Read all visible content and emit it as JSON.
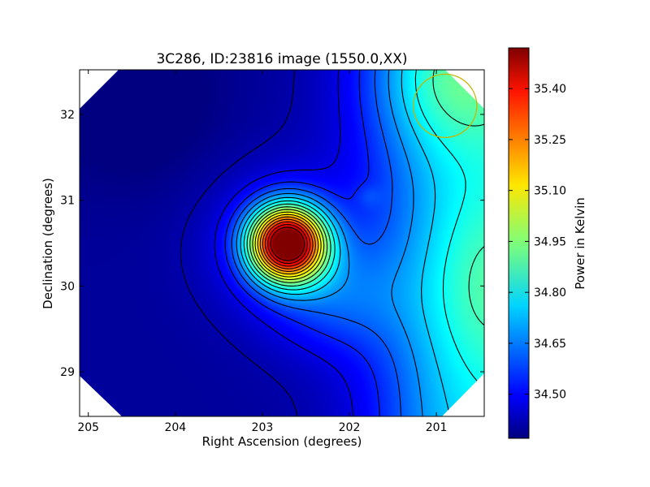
{
  "chart_data": {
    "type": "heatmap",
    "title": "3C286, ID:23816 image (1550.0,XX)",
    "xlabel": "Right Ascension (degrees)",
    "ylabel": "Declination (degrees)",
    "x_ticks": [
      "205",
      "204",
      "203",
      "202",
      "201"
    ],
    "y_ticks": [
      "29",
      "30",
      "31",
      "32"
    ],
    "xlim": [
      205.1,
      200.45
    ],
    "ylim": [
      28.48,
      32.52
    ],
    "x_inverted": true,
    "colorbar": {
      "label": "Power in Kelvin",
      "ticks": [
        "34.50",
        "34.65",
        "34.80",
        "34.95",
        "35.10",
        "35.25",
        "35.40"
      ],
      "range": [
        34.37,
        35.52
      ],
      "colormap": "jet"
    },
    "color_scale": [
      "#00007f",
      "#0000ff",
      "#007fff",
      "#00ffff",
      "#7fff7f",
      "#ffff00",
      "#ff7f00",
      "#ff0000",
      "#7f0000"
    ],
    "features": [
      {
        "name": "source peak",
        "ra": 202.72,
        "dec": 30.5,
        "value": 35.5
      },
      {
        "name": "secondary peak",
        "ra": 200.45,
        "dec": 30.0,
        "value": 34.92
      },
      {
        "name": "minimum region",
        "ra": 205.0,
        "dec": 32.4,
        "value": 34.38
      }
    ],
    "contours": "black lines, about 17 levels",
    "beam_marker": {
      "ra": 200.9,
      "dec": 32.1,
      "color": "#c8b400"
    },
    "grid": false
  }
}
